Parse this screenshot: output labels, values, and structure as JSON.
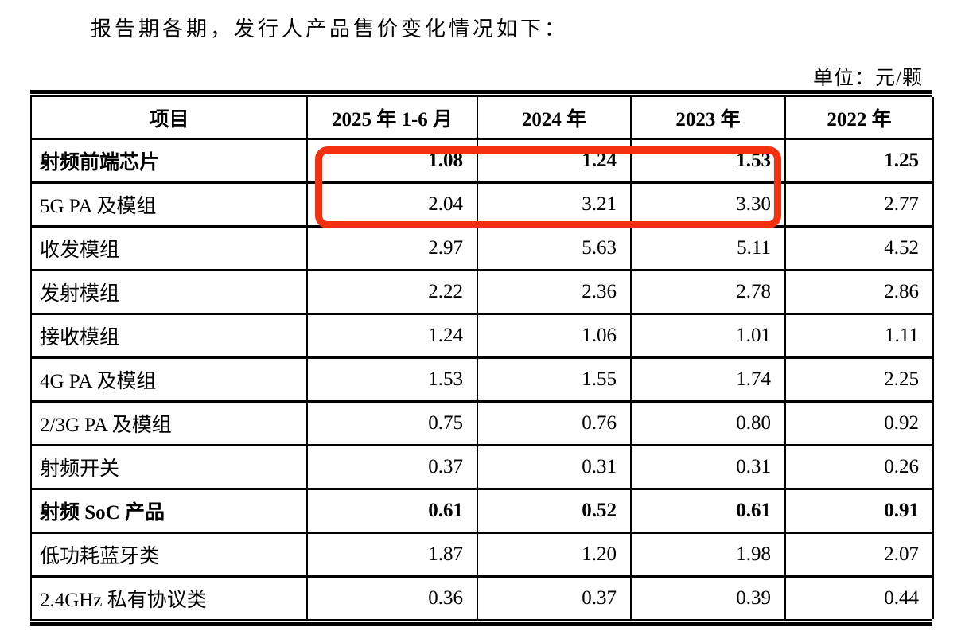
{
  "page": {
    "intro_text": "报告期各期，发行人产品售价变化情况如下：",
    "unit_label": "单位：元/颗",
    "text_color": "#000000",
    "background_color": "#ffffff"
  },
  "table": {
    "columns": [
      "项目",
      "2025 年 1-6 月",
      "2024 年",
      "2023 年",
      "2022 年"
    ],
    "rows": [
      {
        "label": "射频前端芯片",
        "values": [
          "1.08",
          "1.24",
          "1.53",
          "1.25"
        ],
        "bold": true
      },
      {
        "label": "5G PA 及模组",
        "values": [
          "2.04",
          "3.21",
          "3.30",
          "2.77"
        ],
        "bold": false
      },
      {
        "label": "收发模组",
        "values": [
          "2.97",
          "5.63",
          "5.11",
          "4.52"
        ],
        "bold": false
      },
      {
        "label": "发射模组",
        "values": [
          "2.22",
          "2.36",
          "2.78",
          "2.86"
        ],
        "bold": false
      },
      {
        "label": "接收模组",
        "values": [
          "1.24",
          "1.06",
          "1.01",
          "1.11"
        ],
        "bold": false
      },
      {
        "label": "4G PA 及模组",
        "values": [
          "1.53",
          "1.55",
          "1.74",
          "2.25"
        ],
        "bold": false
      },
      {
        "label": "2/3G PA 及模组",
        "values": [
          "0.75",
          "0.76",
          "0.80",
          "0.92"
        ],
        "bold": false
      },
      {
        "label": "射频开关",
        "values": [
          "0.37",
          "0.31",
          "0.31",
          "0.26"
        ],
        "bold": false
      },
      {
        "label": "射频 SoC 产品",
        "values": [
          "0.61",
          "0.52",
          "0.61",
          "0.91"
        ],
        "bold": true
      },
      {
        "label": "低功耗蓝牙类",
        "values": [
          "1.87",
          "1.20",
          "1.98",
          "2.07"
        ],
        "bold": false
      },
      {
        "label": "2.4GHz 私有协议类",
        "values": [
          "0.36",
          "0.37",
          "0.39",
          "0.44"
        ],
        "bold": false
      }
    ]
  },
  "annotation": {
    "shape": "rounded-rectangle-outline",
    "color": "#f33111",
    "highlighted_rows": [
      "射频前端芯片",
      "5G PA 及模组"
    ],
    "highlighted_columns": [
      "2025 年 1-6 月",
      "2024 年",
      "2023 年"
    ]
  }
}
